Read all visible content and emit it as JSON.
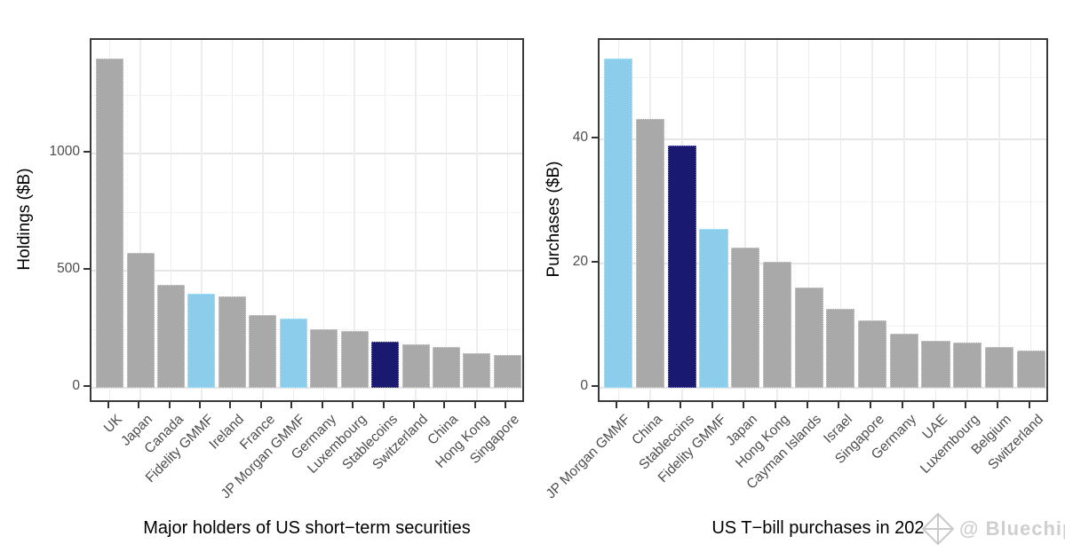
{
  "watermark": {
    "icon": "diamond-gem-icon",
    "label": "@ Bluechip",
    "color": "#cfcfcf"
  },
  "palette": {
    "gray": "#a9a9a9",
    "lightblue": "#8bcdeb",
    "navy": "#191970",
    "grid_major": "#e6e6e6",
    "grid_minor": "#f2f2f2",
    "panel_border": "#3a3a3a",
    "axis_text": "#4d4d4d",
    "axis_title": "#000000"
  },
  "chart_data": [
    {
      "type": "bar",
      "panel": "left",
      "title": "",
      "xlabel": "Major holders of US short−term securities",
      "ylabel": "Holdings ($B)",
      "ylim": [
        0,
        1485
      ],
      "yticks": [
        0,
        500,
        1000
      ],
      "yticks_minor": [
        250,
        750,
        1250
      ],
      "grid": "light gray major+minor on white, boxed dark panel border",
      "legend": "none",
      "categories": [
        "UK",
        "Japan",
        "Canada",
        "Fidelity GMMF",
        "Ireland",
        "France",
        "JP Morgan GMMF",
        "Germany",
        "Luxembourg",
        "Stablecoins",
        "Switzerland",
        "China",
        "Hong Kong",
        "Singapore"
      ],
      "values": [
        1405,
        575,
        440,
        400,
        391,
        309,
        295,
        250,
        242,
        196,
        185,
        176,
        148,
        142
      ],
      "bar_colors": [
        "gray",
        "gray",
        "gray",
        "lightblue",
        "gray",
        "gray",
        "lightblue",
        "gray",
        "gray",
        "navy",
        "gray",
        "gray",
        "gray",
        "gray"
      ]
    },
    {
      "type": "bar",
      "panel": "right",
      "title": "",
      "xlabel": "US T−bill purchases in 2024",
      "ylabel": "Purchases ($B)",
      "ylim": [
        0,
        56
      ],
      "yticks": [
        0,
        20,
        40
      ],
      "yticks_minor": [
        10,
        30,
        50
      ],
      "grid": "light gray major+minor on white, boxed dark panel border",
      "legend": "none",
      "categories": [
        "JP Morgan GMMF",
        "China",
        "Stablecoins",
        "Fidelity GMMF",
        "Japan",
        "Hong Kong",
        "Cayman Islands",
        "Israel",
        "Singapore",
        "Germany",
        "UAE",
        "Luxembourg",
        "Belgium",
        "Switzerland"
      ],
      "values": [
        53,
        43.3,
        39,
        25.6,
        22.6,
        20.3,
        16.1,
        12.7,
        10.9,
        8.7,
        7.6,
        7.3,
        6.6,
        6.0
      ],
      "bar_colors": [
        "lightblue",
        "gray",
        "navy",
        "lightblue",
        "gray",
        "gray",
        "gray",
        "gray",
        "gray",
        "gray",
        "gray",
        "gray",
        "gray",
        "gray"
      ]
    }
  ]
}
